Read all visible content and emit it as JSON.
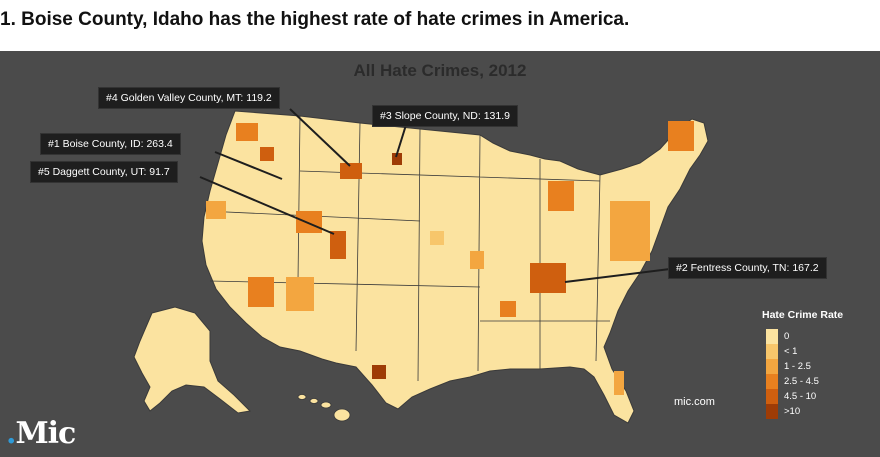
{
  "headline": "1. Boise County, Idaho has the highest rate of hate crimes in America.",
  "map": {
    "title": "All Hate Crimes, 2012",
    "background_color": "#4b4b4b",
    "land_color": "#fbe3a0",
    "callouts": [
      {
        "id": "golden-valley",
        "text": "#4 Golden Valley County, MT: 119.2"
      },
      {
        "id": "slope",
        "text": "#3 Slope County, ND: 131.9"
      },
      {
        "id": "boise",
        "text": "#1 Boise County, ID: 263.4"
      },
      {
        "id": "daggett",
        "text": "#5 Daggett County, UT: 91.7"
      },
      {
        "id": "fentress",
        "text": "#2 Fentress County, TN: 167.2"
      }
    ],
    "legend": {
      "title": "Hate Crime Rate",
      "items": [
        {
          "label": "0",
          "color": "#fbe3a0"
        },
        {
          "label": "< 1",
          "color": "#f7c66b"
        },
        {
          "label": "1 - 2.5",
          "color": "#f3a640"
        },
        {
          "label": "2.5 - 4.5",
          "color": "#e8801f"
        },
        {
          "label": "4.5 - 10",
          "color": "#cf5f0f"
        },
        {
          "label": ">10",
          "color": "#9e3c06"
        }
      ]
    },
    "source": "mic.com",
    "logo": {
      "dot": ".",
      "word": "Mic"
    }
  }
}
